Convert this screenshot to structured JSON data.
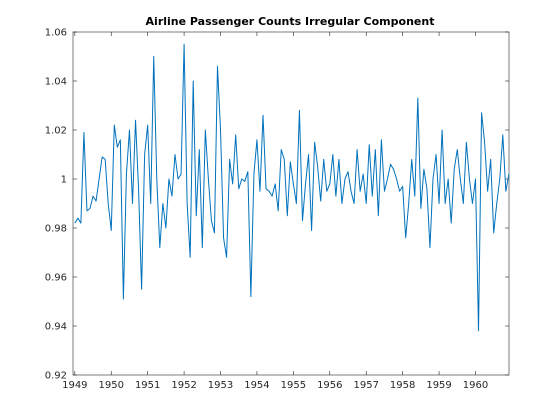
{
  "chart_data": {
    "type": "line",
    "title": "Airline Passenger Counts Irregular Component",
    "xlabel": "",
    "ylabel": "",
    "xlim": [
      1948.95,
      1960.92
    ],
    "ylim": [
      0.92,
      1.06
    ],
    "x_ticks": [
      1949,
      1950,
      1951,
      1952,
      1953,
      1954,
      1955,
      1956,
      1957,
      1958,
      1959,
      1960
    ],
    "x_tick_labels": [
      "1949",
      "1950",
      "1951",
      "1952",
      "1953",
      "1954",
      "1955",
      "1956",
      "1957",
      "1958",
      "1959",
      "1960"
    ],
    "y_ticks": [
      0.92,
      0.94,
      0.96,
      0.98,
      1.0,
      1.02,
      1.04,
      1.06
    ],
    "y_tick_labels": [
      "0.92",
      "0.94",
      "0.96",
      "0.98",
      "1",
      "1.02",
      "1.04",
      "1.06"
    ],
    "grid": false,
    "line_color": "#0072BD",
    "x_start": 1949.0,
    "x_step": 0.0833333,
    "series": [
      {
        "values": [
          0.982,
          0.984,
          0.982,
          1.019,
          0.987,
          0.988,
          0.993,
          0.991,
          1.0,
          1.009,
          1.008,
          0.99,
          0.979,
          1.022,
          1.013,
          1.016,
          0.951,
          1.002,
          1.02,
          0.99,
          1.024,
          0.996,
          0.955,
          1.01,
          1.022,
          0.99,
          1.05,
          1.0,
          0.972,
          0.99,
          0.98,
          1.0,
          0.993,
          1.01,
          1.0,
          1.002,
          1.055,
          0.99,
          0.968,
          1.04,
          0.985,
          1.012,
          0.972,
          1.02,
          1.0,
          0.983,
          0.978,
          1.046,
          1.02,
          0.976,
          0.968,
          1.008,
          0.998,
          1.018,
          0.996,
          1.0,
          0.999,
          1.003,
          0.952,
          1.002,
          1.016,
          0.995,
          1.026,
          0.996,
          0.995,
          0.993,
          0.998,
          0.987,
          1.012,
          1.008,
          0.985,
          1.007,
          0.998,
          0.99,
          1.028,
          0.983,
          0.998,
          1.01,
          0.979,
          1.015,
          1.005,
          0.991,
          1.008,
          0.995,
          0.998,
          1.01,
          0.993,
          1.008,
          0.99,
          1.0,
          1.003,
          0.995,
          0.99,
          1.012,
          0.995,
          1.002,
          0.99,
          1.014,
          0.993,
          1.012,
          0.985,
          1.016,
          0.995,
          1.0,
          1.006,
          1.004,
          1.0,
          0.995,
          0.997,
          0.976,
          0.99,
          1.008,
          0.993,
          1.033,
          0.988,
          1.004,
          0.996,
          0.972,
          1.0,
          1.01,
          0.99,
          1.02,
          0.99,
          1.0,
          0.982,
          1.004,
          1.012,
          1.0,
          0.99,
          1.015,
          1.0,
          0.99,
          1.0,
          0.938,
          1.027,
          1.015,
          0.995,
          1.008,
          0.978,
          0.99,
          1.0,
          1.018,
          0.995,
          1.002
        ]
      }
    ]
  }
}
